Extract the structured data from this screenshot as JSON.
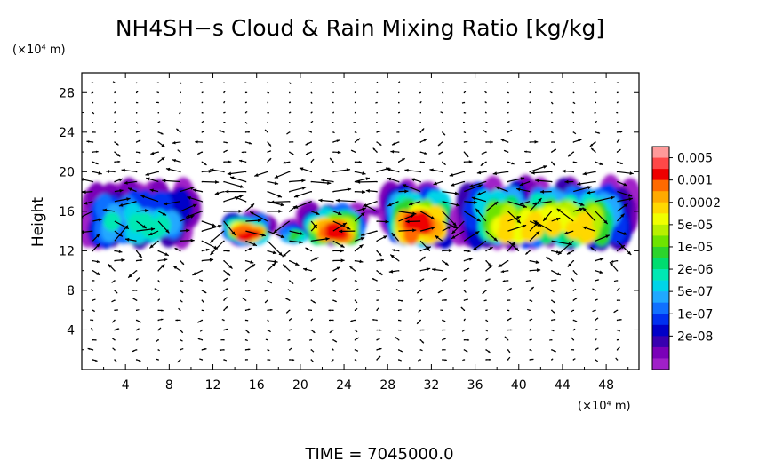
{
  "chart_data": {
    "type": "heatmap",
    "title": "NH4SH−s Cloud & Rain Mixing Ratio [kg/kg]",
    "ylabel": "Height",
    "y_unit": "(×10⁴ m)",
    "x_unit": "(×10⁴ m)",
    "footer": "TIME  =  7045000.0",
    "xlim": [
      0,
      51
    ],
    "ylim": [
      0,
      30
    ],
    "xticks": [
      "4",
      "8",
      "12",
      "16",
      "20",
      "24",
      "28",
      "32",
      "36",
      "40",
      "44",
      "48"
    ],
    "yticks": [
      "4",
      "8",
      "12",
      "16",
      "20",
      "24",
      "28"
    ],
    "grid": false,
    "colorbar": {
      "labels": [
        "0.005",
        "0.001",
        "0.0002",
        "5e-05",
        "1e-05",
        "2e-06",
        "5e-07",
        "1e-07",
        "2e-08"
      ],
      "colors": [
        "#ff9a9a",
        "#ff4848",
        "#ee0000",
        "#ff6a00",
        "#ffaa00",
        "#ffd800",
        "#f0ff00",
        "#b8f000",
        "#6ee400",
        "#2cd42c",
        "#00dd70",
        "#00e8b4",
        "#00d4e8",
        "#20a8ff",
        "#1070ff",
        "#0030f0",
        "#0000c8",
        "#3800b0",
        "#7a00b8",
        "#a020c8"
      ]
    },
    "cloud_layers": [
      {
        "x_start": 0,
        "x_end": 10.5,
        "y_bottom": 13,
        "y_top": 19.5,
        "peak": "2e-06"
      },
      {
        "x_start": 13.5,
        "x_end": 17,
        "y_bottom": 13,
        "y_top": 16,
        "peak": "0.001"
      },
      {
        "x_start": 18.5,
        "x_end": 20.5,
        "y_bottom": 13,
        "y_top": 15,
        "peak": "1e-05"
      },
      {
        "x_start": 20.5,
        "x_end": 25.5,
        "y_bottom": 13,
        "y_top": 17,
        "peak": "0.001"
      },
      {
        "x_start": 25.5,
        "x_end": 28.5,
        "y_bottom": 15.5,
        "y_top": 16.5,
        "peak": "2e-08"
      },
      {
        "x_start": 28,
        "x_end": 34,
        "y_bottom": 13,
        "y_top": 19,
        "peak": "0.001"
      },
      {
        "x_start": 34,
        "x_end": 51,
        "y_bottom": 13,
        "y_top": 19.5,
        "peak": "0.0002"
      }
    ],
    "wind_vectors": "dense field of black arrows, strongest near 14-20 (x10^4 m) height"
  }
}
